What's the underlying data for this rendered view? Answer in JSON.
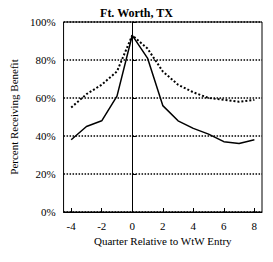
{
  "chart_data": {
    "type": "line",
    "title": "Ft. Worth, TX",
    "x_label": "Quarter Relative to WtW Entry",
    "y_label": "Percent Receiving Benefit",
    "x": [
      -4,
      -3,
      -2,
      -1,
      0,
      1,
      2,
      3,
      4,
      5,
      6,
      7,
      8
    ],
    "series": [
      {
        "color": "#000000",
        "line_style": "solid",
        "values": [
          38,
          45,
          48,
          61,
          93,
          81,
          56,
          48,
          44,
          41,
          37,
          36,
          38
        ]
      },
      {
        "color": "#000000",
        "line_style": "dotted",
        "values": [
          55,
          62,
          67,
          74,
          93,
          86,
          74,
          67,
          63,
          60,
          59,
          58,
          59
        ]
      }
    ],
    "xlim": [
      -4.5,
      8.5
    ],
    "xticks": [
      -4,
      -2,
      0,
      2,
      4,
      6,
      8
    ],
    "ylim": [
      0,
      100
    ],
    "yticks": [
      {
        "value": 0,
        "label": "0%"
      },
      {
        "value": 20,
        "label": "20%"
      },
      {
        "value": 40,
        "label": "40%"
      },
      {
        "value": 60,
        "label": "60%"
      },
      {
        "value": 80,
        "label": "80%"
      },
      {
        "value": 100,
        "label": "100%"
      }
    ],
    "grid": true
  }
}
